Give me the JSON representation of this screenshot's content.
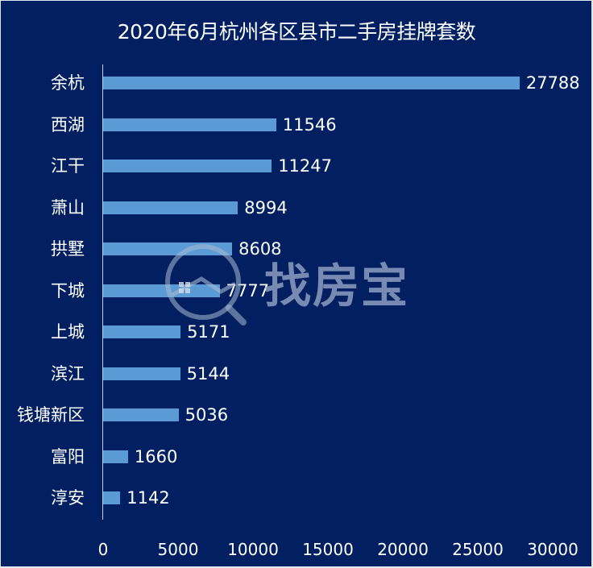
{
  "title": "2020年6月杭州各区县市二手房挂牌套数",
  "watermark": {
    "text": "找房宝",
    "icon": "magnifier-house-icon"
  },
  "colors": {
    "background": "#021f61",
    "bar": "#5b9bd5",
    "text": "#ffffff",
    "axis": "#c8d3e8"
  },
  "chart_data": {
    "type": "bar",
    "orientation": "horizontal",
    "title": "2020年6月杭州各区县市二手房挂牌套数",
    "xlabel": "",
    "ylabel": "",
    "categories": [
      "余杭",
      "西湖",
      "江干",
      "萧山",
      "拱墅",
      "下城",
      "上城",
      "滨江",
      "钱塘新区",
      "富阳",
      "淳安"
    ],
    "values": [
      27788,
      11546,
      11247,
      8994,
      8608,
      7777,
      5171,
      5144,
      5036,
      1660,
      1142
    ],
    "xlim": [
      0,
      30000
    ],
    "xticks": [
      "0",
      "5000",
      "10000",
      "15000",
      "20000",
      "25000",
      "30000"
    ],
    "grid": false,
    "legend": false,
    "data_labels": true
  }
}
